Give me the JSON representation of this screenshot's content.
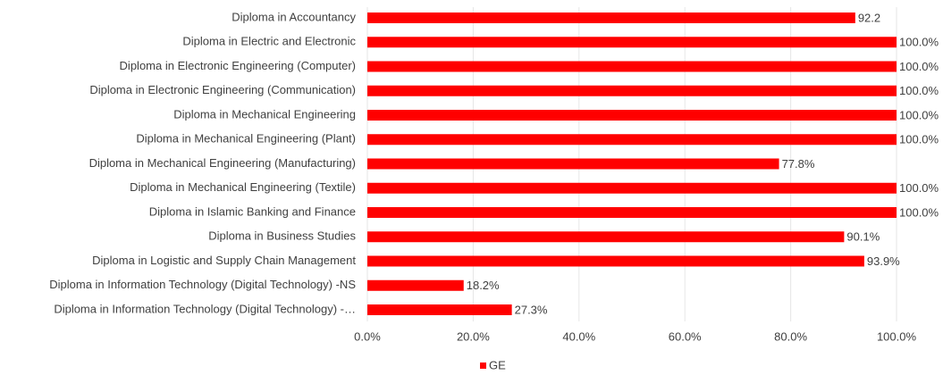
{
  "chart_data": {
    "type": "bar",
    "orientation": "horizontal",
    "categories": [
      "Diploma in Accountancy",
      "Diploma in Electric and Electronic",
      "Diploma in Electronic Engineering (Computer)",
      "Diploma in Electronic Engineering (Communication)",
      "Diploma in Mechanical Engineering ",
      "Diploma in Mechanical Engineering (Plant)",
      "Diploma in Mechanical Engineering (Manufacturing)",
      "Diploma in Mechanical Engineering (Textile)",
      "Diploma in Islamic Banking and Finance",
      "Diploma in Business Studies",
      "Diploma in Logistic and Supply Chain Management",
      "Diploma in Information Technology (Digital Technology) -NS",
      "Diploma in Information Technology (Digital Technology) -…"
    ],
    "series": [
      {
        "name": "GE",
        "color": "#ff0000",
        "values": [
          92.2,
          100,
          100,
          100,
          100,
          100,
          77.8,
          100,
          100,
          90.1,
          93.9,
          18.2,
          27.3
        ],
        "value_labels": [
          "92.2",
          "100.0%",
          "100.0%",
          "100.0%",
          "100.0%",
          "100.0%",
          "77.8%",
          "100.0%",
          "100.0%",
          "90.1%",
          "93.9%",
          "18.2%",
          "27.3%"
        ]
      }
    ],
    "xlim": [
      0,
      100
    ],
    "xticks": [
      {
        "value": 0,
        "label": "0.0%"
      },
      {
        "value": 20,
        "label": "20.0%"
      },
      {
        "value": 40,
        "label": "40.0%"
      },
      {
        "value": 60,
        "label": "60.0%"
      },
      {
        "value": 80,
        "label": "80.0%"
      },
      {
        "value": 100,
        "label": "100.0%"
      }
    ],
    "grid": true,
    "legend": "bottom"
  }
}
